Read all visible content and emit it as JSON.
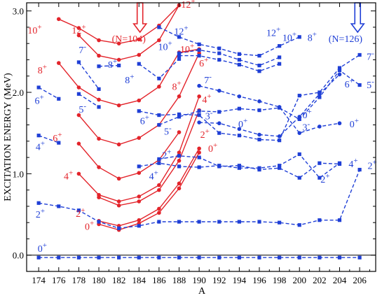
{
  "chart_data": {
    "type": "scatter",
    "title": "",
    "xlabel": "A",
    "ylabel": "EXCITATION ENERGY (MeV)",
    "xlim": [
      172.8,
      207.6
    ],
    "ylim": [
      -0.2,
      3.1
    ],
    "x_ticks": [
      174,
      176,
      178,
      180,
      182,
      184,
      186,
      188,
      190,
      192,
      194,
      196,
      198,
      200,
      202,
      204,
      206
    ],
    "y_ticks": [
      0.0,
      1.0,
      2.0,
      3.0
    ],
    "y_tick_labels": [
      "0.0",
      "1.0",
      "2.0",
      "3.0"
    ],
    "grid": false,
    "colors": {
      "red": "#e3242b",
      "blue": "#1f3fd6"
    },
    "series": [
      {
        "color": "red",
        "style": "solid",
        "marker": "circle",
        "x": [
          180,
          182,
          184,
          186,
          188,
          190
        ],
        "y": [
          0.38,
          0.31,
          0.39,
          0.52,
          0.82,
          1.26
        ]
      },
      {
        "color": "red",
        "style": "solid",
        "marker": "circle",
        "x": [
          180,
          182,
          184,
          186,
          188,
          190
        ],
        "y": [
          0.42,
          0.36,
          0.43,
          0.57,
          0.88,
          1.31
        ]
      },
      {
        "color": "red",
        "style": "solid",
        "marker": "circle",
        "x": [
          180,
          182,
          184,
          186,
          188,
          190
        ],
        "y": [
          0.71,
          0.61,
          0.66,
          0.8,
          1.16,
          1.78
        ]
      },
      {
        "color": "red",
        "style": "solid",
        "marker": "circle",
        "x": [
          178,
          180,
          182,
          184,
          186,
          188,
          190
        ],
        "y": [
          1.0,
          0.74,
          0.66,
          0.72,
          0.86,
          1.26,
          1.95
        ]
      },
      {
        "color": "red",
        "style": "solid",
        "marker": "circle",
        "x": [
          178,
          180,
          182,
          184,
          186,
          188
        ],
        "y": [
          1.37,
          1.08,
          0.94,
          1.01,
          1.17,
          1.51
        ]
      },
      {
        "color": "red",
        "style": "solid",
        "marker": "circle",
        "x": [
          178,
          180,
          182,
          184,
          186,
          188,
          190
        ],
        "y": [
          1.72,
          1.43,
          1.36,
          1.44,
          1.6,
          1.95,
          2.48
        ]
      },
      {
        "color": "red",
        "style": "solid",
        "marker": "circle",
        "x": [
          176,
          178,
          180,
          182,
          184,
          186,
          188,
          190
        ],
        "y": [
          2.36,
          2.06,
          1.91,
          1.84,
          1.9,
          2.07,
          2.49,
          2.53
        ]
      },
      {
        "color": "red",
        "style": "solid",
        "marker": "circle",
        "x": [
          178,
          180,
          182,
          184,
          186,
          188
        ],
        "y": [
          2.7,
          2.45,
          2.4,
          2.46,
          2.64,
          3.07
        ]
      },
      {
        "color": "red",
        "style": "solid",
        "marker": "circle",
        "x": [
          176,
          178,
          180,
          182,
          184,
          186,
          188
        ],
        "y": [
          2.9,
          2.79,
          2.64,
          2.6,
          2.65,
          2.82,
          3.07
        ]
      },
      {
        "color": "blue",
        "style": "dashed",
        "marker": "square",
        "x": [
          174,
          176,
          178,
          180,
          182,
          184,
          186,
          188,
          190,
          192,
          194,
          196,
          198,
          200,
          202,
          204,
          206
        ],
        "y": [
          -0.03,
          -0.03,
          -0.03,
          -0.03,
          -0.03,
          -0.03,
          -0.03,
          -0.03,
          -0.03,
          -0.03,
          -0.03,
          -0.03,
          -0.03,
          -0.03,
          -0.03,
          -0.03,
          -0.03
        ]
      },
      {
        "color": "blue",
        "style": "dashed",
        "marker": "square",
        "x": [
          174,
          176,
          178,
          180,
          182,
          184,
          186,
          188,
          190,
          192,
          194,
          196,
          198,
          200,
          202,
          204,
          206
        ],
        "y": [
          0.64,
          0.6,
          0.55,
          0.41,
          0.33,
          0.36,
          0.41,
          0.41,
          0.41,
          0.41,
          0.41,
          0.41,
          0.4,
          0.37,
          0.43,
          0.43,
          1.05
        ]
      },
      {
        "color": "blue",
        "style": "dashed",
        "marker": "square",
        "x": [
          174,
          176
        ],
        "y": [
          1.47,
          1.38
        ]
      },
      {
        "color": "blue",
        "style": "dashed",
        "marker": "square",
        "x": [
          174,
          176
        ],
        "y": [
          2.06,
          1.92
        ]
      },
      {
        "color": "blue",
        "style": "dashed",
        "marker": "square",
        "x": [
          178,
          180
        ],
        "y": [
          1.98,
          1.82
        ]
      },
      {
        "color": "blue",
        "style": "dashed",
        "marker": "square",
        "x": [
          178,
          180
        ],
        "y": [
          2.37,
          2.04
        ]
      },
      {
        "color": "blue",
        "style": "dashed",
        "marker": "square",
        "x": [
          180,
          182
        ],
        "y": [
          2.32,
          2.33
        ]
      },
      {
        "color": "blue",
        "style": "dashed",
        "marker": "square",
        "x": [
          184,
          186,
          188,
          190,
          192,
          194,
          196,
          198,
          200,
          202,
          204
        ],
        "y": [
          1.09,
          1.13,
          1.09,
          1.08,
          1.1,
          1.07,
          1.07,
          1.1,
          1.24,
          0.95,
          1.13
        ]
      },
      {
        "color": "blue",
        "style": "dashed",
        "marker": "square",
        "x": [
          186,
          188,
          190,
          192,
          194,
          196,
          198,
          200,
          202,
          204
        ],
        "y": [
          1.18,
          1.22,
          1.2,
          1.09,
          1.1,
          1.05,
          1.07,
          0.95,
          1.13,
          1.12
        ]
      },
      {
        "color": "blue",
        "style": "dashed",
        "marker": "square",
        "x": [
          184,
          186,
          188,
          190,
          192,
          194,
          196,
          198,
          200,
          202,
          204,
          206
        ],
        "y": [
          1.77,
          1.72,
          1.73,
          1.72,
          1.5,
          1.47,
          1.42,
          1.41,
          1.96,
          2.0,
          2.3,
          2.46
        ]
      },
      {
        "color": "blue",
        "style": "dashed",
        "marker": "square",
        "x": [
          186,
          188,
          190,
          192,
          194,
          196,
          198,
          200,
          202,
          204,
          206
        ],
        "y": [
          1.6,
          1.7,
          1.77,
          1.76,
          1.8,
          1.78,
          1.81,
          1.67,
          1.94,
          2.27,
          2.09
        ]
      },
      {
        "color": "blue",
        "style": "dashed",
        "marker": "circle",
        "x": [
          190,
          192,
          194,
          196,
          198,
          200,
          202,
          204
        ],
        "y": [
          2.08,
          2.02,
          1.95,
          1.89,
          1.82,
          1.5,
          1.58,
          1.62
        ]
      },
      {
        "color": "blue",
        "style": "dashed",
        "marker": "circle",
        "x": [
          190,
          192,
          194,
          196,
          198,
          200,
          202,
          204
        ],
        "y": [
          1.63,
          1.62,
          1.55,
          1.48,
          1.46,
          1.7,
          1.98,
          2.22
        ]
      },
      {
        "color": "blue",
        "style": "dashed",
        "marker": "square",
        "x": [
          184,
          186,
          188
        ],
        "y": [
          2.35,
          2.17,
          2.41
        ]
      },
      {
        "color": "blue",
        "style": "dashed",
        "marker": "square",
        "x": [
          186,
          188,
          190,
          192,
          194,
          196,
          198,
          200
        ],
        "y": [
          2.8,
          2.68,
          2.59,
          2.54,
          2.47,
          2.45,
          2.57,
          2.68
        ]
      },
      {
        "color": "blue",
        "style": "dashed",
        "marker": "square",
        "x": [
          188,
          190,
          192,
          194,
          196,
          198
        ],
        "y": [
          2.48,
          2.52,
          2.48,
          2.4,
          2.33,
          2.43
        ]
      },
      {
        "color": "blue",
        "style": "dashed",
        "marker": "square",
        "x": [
          188,
          190,
          192,
          194,
          196,
          198
        ],
        "y": [
          2.45,
          2.45,
          2.4,
          2.34,
          2.26,
          2.35
        ]
      }
    ],
    "labels": [
      {
        "text": "0",
        "sup": "+",
        "color": "blue",
        "x": 173.9,
        "y": 0.04
      },
      {
        "text": "2",
        "sup": "+",
        "color": "blue",
        "x": 173.7,
        "y": 0.46
      },
      {
        "text": "4",
        "sup": "+",
        "color": "blue",
        "x": 173.7,
        "y": 1.29
      },
      {
        "text": "6",
        "sup": "+",
        "color": "blue",
        "x": 173.6,
        "y": 1.86
      },
      {
        "text": "7",
        "sup": "-",
        "color": "blue",
        "x": 178.0,
        "y": 2.48
      },
      {
        "text": "5",
        "sup": "-",
        "color": "blue",
        "x": 178.0,
        "y": 1.75
      },
      {
        "text": "8",
        "sup": "+",
        "color": "blue",
        "x": 180.9,
        "y": 2.3
      },
      {
        "text": "8",
        "sup": "+",
        "color": "blue",
        "x": 182.6,
        "y": 2.11
      },
      {
        "text": "10",
        "sup": "+",
        "color": "blue",
        "x": 185.9,
        "y": 2.52
      },
      {
        "text": "12",
        "sup": "+",
        "color": "blue",
        "x": 187.5,
        "y": 2.71
      },
      {
        "text": "6",
        "sup": "+",
        "color": "blue",
        "x": 184.1,
        "y": 1.61
      },
      {
        "text": "5",
        "sup": "-",
        "color": "blue",
        "x": 186.5,
        "y": 1.48
      },
      {
        "text": "2",
        "sup": "+",
        "color": "blue",
        "x": 186.3,
        "y": 1.19
      },
      {
        "text": "4",
        "sup": "+",
        "color": "blue",
        "x": 185.0,
        "y": 0.93
      },
      {
        "text": "7",
        "sup": "-",
        "color": "blue",
        "x": 190.5,
        "y": 2.11
      },
      {
        "text": "3",
        "sup": "-",
        "color": "blue",
        "x": 190.6,
        "y": 1.67
      },
      {
        "text": "0",
        "sup": "+",
        "color": "blue",
        "x": 193.9,
        "y": 1.57
      },
      {
        "text": "12",
        "sup": "+",
        "color": "blue",
        "x": 196.7,
        "y": 2.69
      },
      {
        "text": "10",
        "sup": "+",
        "color": "blue",
        "x": 198.3,
        "y": 2.63
      },
      {
        "text": "8",
        "sup": "+",
        "color": "blue",
        "x": 200.8,
        "y": 2.63
      },
      {
        "text": "6",
        "sup": "+",
        "color": "blue",
        "x": 204.5,
        "y": 2.06
      },
      {
        "text": "7",
        "sup": "-",
        "color": "blue",
        "x": 206.7,
        "y": 2.4
      },
      {
        "text": "5",
        "sup": "-",
        "color": "blue",
        "x": 206.7,
        "y": 2.05
      },
      {
        "text": "0",
        "sup": "+",
        "color": "blue",
        "x": 200.3,
        "y": 1.68
      },
      {
        "text": "3",
        "sup": "-",
        "color": "blue",
        "x": 200.3,
        "y": 1.53
      },
      {
        "text": "0",
        "sup": "+",
        "color": "blue",
        "x": 205.0,
        "y": 1.57
      },
      {
        "text": "2",
        "sup": "+",
        "color": "blue",
        "x": 202.1,
        "y": 0.89
      },
      {
        "text": "4",
        "sup": "+",
        "color": "blue",
        "x": 204.9,
        "y": 1.08
      },
      {
        "text": "2",
        "sup": "+",
        "color": "blue",
        "x": 206.8,
        "y": 1.06
      },
      {
        "text": "10",
        "sup": "+",
        "color": "red",
        "x": 172.9,
        "y": 2.72
      },
      {
        "text": "12",
        "sup": "+",
        "color": "red",
        "x": 177.3,
        "y": 2.72
      },
      {
        "text": "8",
        "sup": "+",
        "color": "red",
        "x": 173.9,
        "y": 2.23
      },
      {
        "text": "6",
        "sup": "+",
        "color": "red",
        "x": 175.4,
        "y": 1.4
      },
      {
        "text": "4",
        "sup": "+",
        "color": "red",
        "x": 176.5,
        "y": 0.93
      },
      {
        "text": "2",
        "sup": "+",
        "color": "red",
        "x": 177.7,
        "y": 0.47
      },
      {
        "text": "0",
        "sup": "+",
        "color": "red",
        "x": 178.6,
        "y": 0.31
      },
      {
        "text": "12",
        "sup": "+",
        "color": "red",
        "x": 188.2,
        "y": 3.04
      },
      {
        "text": "10",
        "sup": "+",
        "color": "red",
        "x": 188.1,
        "y": 2.49
      },
      {
        "text": "6",
        "sup": "+",
        "color": "red",
        "x": 190.0,
        "y": 2.32
      },
      {
        "text": "8",
        "sup": "+",
        "color": "red",
        "x": 187.3,
        "y": 2.03
      },
      {
        "text": "4",
        "sup": "+",
        "color": "red",
        "x": 190.3,
        "y": 1.87
      },
      {
        "text": "2",
        "sup": "+",
        "color": "red",
        "x": 190.1,
        "y": 1.44
      },
      {
        "text": "0",
        "sup": "+",
        "color": "red",
        "x": 190.9,
        "y": 1.27
      }
    ],
    "annotations": [
      {
        "text": "(N=104)",
        "color": "red",
        "x": 181.3,
        "y": 2.62,
        "arrow_x": 184.1
      },
      {
        "text": "(N=126)",
        "color": "blue",
        "x": 202.9,
        "y": 2.62,
        "arrow_x": 205.8
      }
    ]
  }
}
